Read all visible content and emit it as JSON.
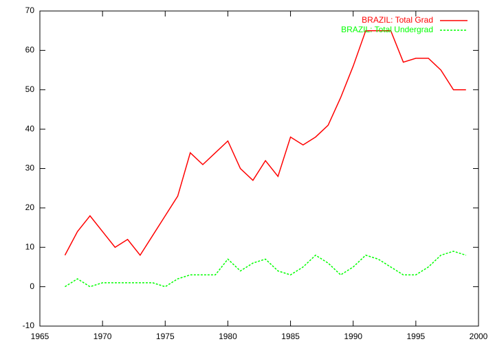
{
  "chart_data": {
    "type": "line",
    "x": [
      1967,
      1968,
      1969,
      1970,
      1971,
      1972,
      1973,
      1974,
      1975,
      1976,
      1977,
      1978,
      1979,
      1980,
      1981,
      1982,
      1983,
      1984,
      1985,
      1986,
      1987,
      1988,
      1989,
      1990,
      1991,
      1992,
      1993,
      1994,
      1995,
      1996,
      1997,
      1998,
      1999
    ],
    "series": [
      {
        "name": "BRAZIL: Total Grad",
        "color": "#ff0000",
        "dash": "solid",
        "values": [
          8,
          14,
          18,
          14,
          10,
          12,
          8,
          13,
          18,
          23,
          34,
          31,
          34,
          37,
          30,
          27,
          32,
          28,
          38,
          36,
          38,
          41,
          48,
          56,
          65,
          65,
          65,
          57,
          58,
          58,
          55,
          50,
          50
        ]
      },
      {
        "name": "BRAZIL: Total Undergrad",
        "color": "#00ff00",
        "dash": "dashed",
        "values": [
          0,
          2,
          0,
          1,
          1,
          1,
          1,
          1,
          0,
          2,
          3,
          3,
          3,
          7,
          4,
          6,
          7,
          4,
          3,
          5,
          8,
          6,
          3,
          5,
          8,
          7,
          5,
          3,
          3,
          5,
          8,
          9,
          8
        ]
      }
    ],
    "xlim": [
      1965,
      2000
    ],
    "xticks": [
      1965,
      1970,
      1975,
      1980,
      1985,
      1990,
      1995,
      2000
    ],
    "ylim": [
      -10,
      70
    ],
    "yticks": [
      -10,
      0,
      10,
      20,
      30,
      40,
      50,
      60,
      70
    ],
    "legend": "top-right",
    "grid": false
  }
}
